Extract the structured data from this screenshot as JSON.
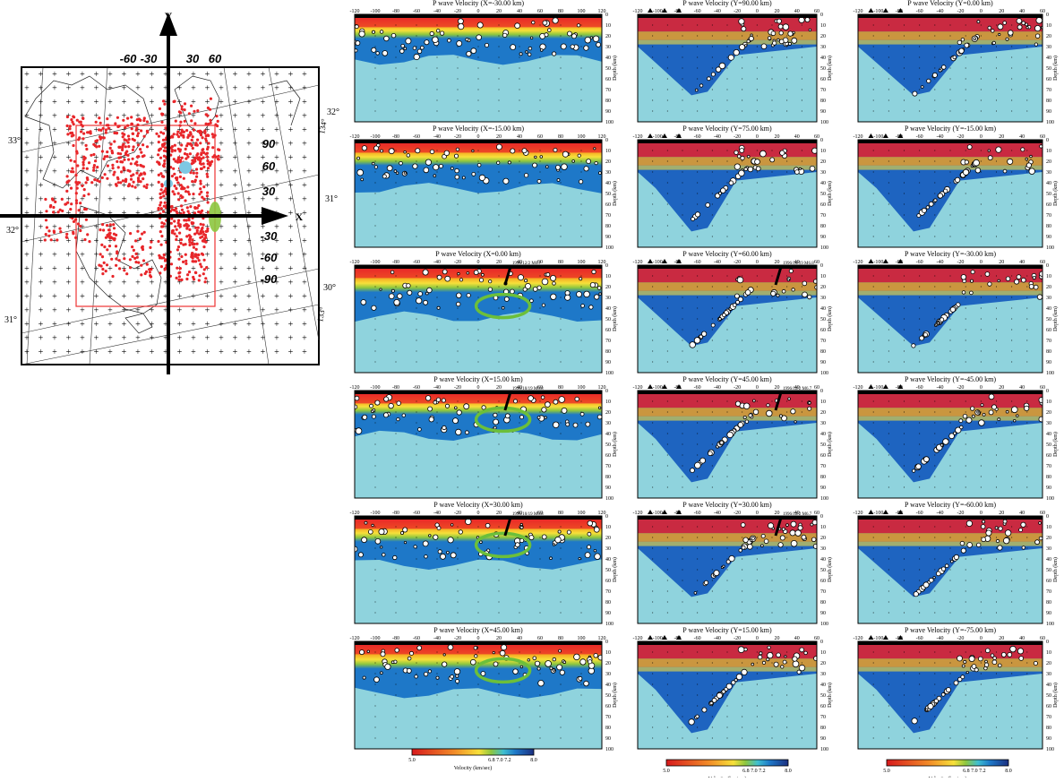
{
  "map": {
    "x_label": "X",
    "y_label": "Y",
    "top_ticks": [
      "-60",
      "-30",
      "30",
      "60"
    ],
    "right_ticks": [
      "90",
      "60",
      "30",
      "-30",
      "-60",
      "-90"
    ],
    "lat_left": [
      "33°",
      "32°",
      "31°"
    ],
    "lat_right": [
      "32°",
      "31°",
      "30°"
    ],
    "lon_labels": [
      "134°",
      "133°"
    ]
  },
  "col_x": {
    "title_prefix": "P wave Velocity (X=",
    "panels": [
      "-30.00",
      "-15.00",
      "0.00",
      "15.00",
      "30.00",
      "45.00"
    ],
    "xticks": [
      "-120",
      "-100",
      "-80",
      "-60",
      "-40",
      "-20",
      "0",
      "20",
      "40",
      "60",
      "80",
      "100",
      "120"
    ],
    "annotations": [
      "",
      "",
      "1996/12/2 M6.7",
      "1996/10/19 M6.8",
      "1996/10/19 M6.8",
      ""
    ]
  },
  "col_y1": {
    "title_prefix": "P wave Velocity (Y=",
    "panels": [
      "90.00",
      "75.00",
      "60.00",
      "45.00",
      "30.00",
      "15.00"
    ],
    "xticks": [
      "-120",
      "-100",
      "-80",
      "-60",
      "-40",
      "-20",
      "0",
      "20",
      "40",
      "60"
    ],
    "annotations": [
      "",
      "",
      "1996/10/19 M6.8",
      "1996/12/2 M6.7",
      "1996/12/2 M6.7",
      ""
    ]
  },
  "col_y2": {
    "title_prefix": "P wave Velocity (Y=",
    "panels": [
      "0.00",
      "-15.00",
      "-30.00",
      "-45.00",
      "-60.00",
      "-75.00"
    ],
    "xticks": [
      "-120",
      "-100",
      "-80",
      "-60",
      "-40",
      "-20",
      "0",
      "20",
      "40",
      "60"
    ]
  },
  "title_suffix": " km)",
  "depth_label": "Depth (km)",
  "depth_ticks": [
    "0",
    "10",
    "20",
    "30",
    "40",
    "50",
    "60",
    "70",
    "80",
    "90",
    "100"
  ],
  "colorbar": {
    "left": "5.0",
    "mid": "6.8 7.0 7.2",
    "right": "8.0",
    "label": "Velocity (km/sec)"
  }
}
